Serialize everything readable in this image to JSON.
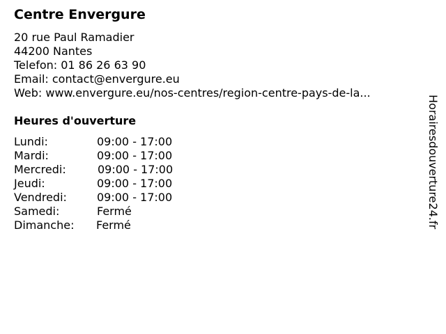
{
  "title": "Centre Envergure",
  "address": [
    "20 rue Paul Ramadier",
    "44200 Nantes",
    "Telefon: 01 86 26 63 90",
    "Email: contact@envergure.eu",
    "Web: www.envergure.eu/nos-centres/region-centre-pays-de-la..."
  ],
  "hours_title": "Heures d'ouverture",
  "hours": [
    {
      "day": "Lundi:",
      "time": "09:00 - 17:00"
    },
    {
      "day": "Mardi:",
      "time": "09:00 - 17:00"
    },
    {
      "day": "Mercredi:",
      "time": "09:00 - 17:00"
    },
    {
      "day": "Jeudi:",
      "time": "09:00 - 17:00"
    },
    {
      "day": "Vendredi:",
      "time": "09:00 - 17:00"
    },
    {
      "day": "Samedi:",
      "time": "Fermé"
    },
    {
      "day": "Dimanche:",
      "time": "Fermé"
    }
  ],
  "watermark": "Horairesdouverture24.fr"
}
